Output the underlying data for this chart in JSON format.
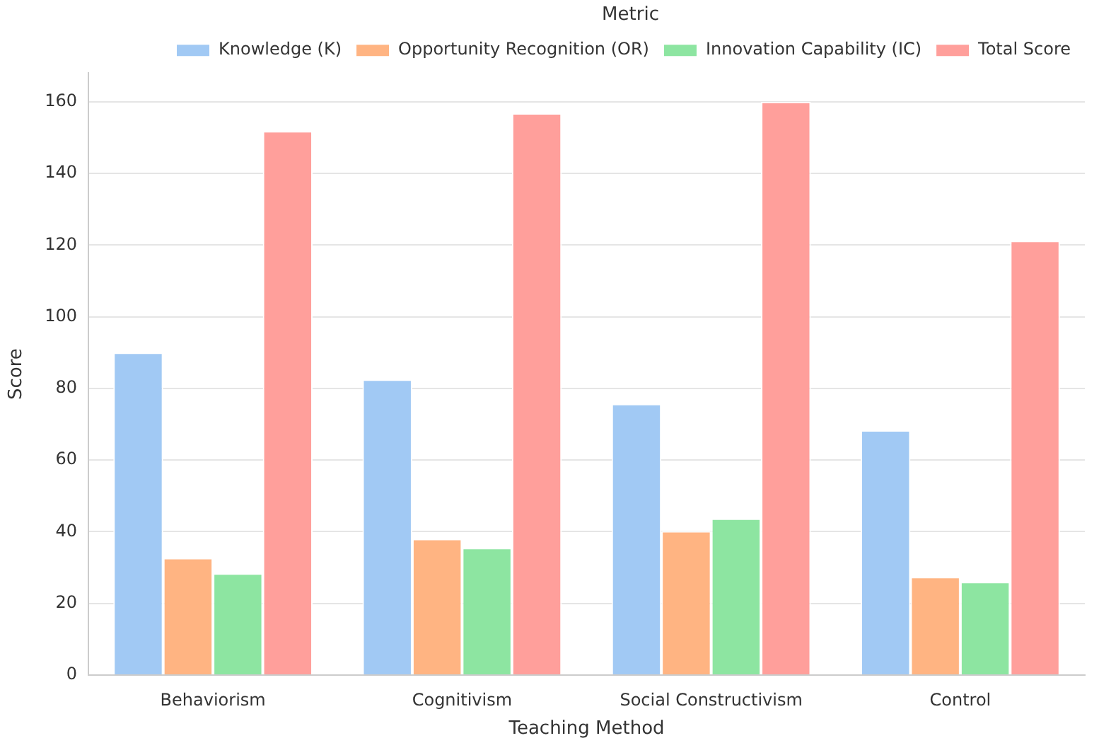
{
  "chart_data": {
    "type": "bar",
    "xlabel": "Teaching Method",
    "ylabel": "Score",
    "legend_title": "Metric",
    "legend": "top right",
    "grid": "y",
    "categories": [
      "Behaviorism",
      "Cognitivism",
      "Social Constructivism",
      "Control"
    ],
    "series": [
      {
        "name": "Knowledge (K)",
        "color": "#a1c9f4",
        "values": [
          90,
          82.5,
          75.7,
          68.3
        ]
      },
      {
        "name": "Opportunity Recognition (OR)",
        "color": "#ffb482",
        "values": [
          32.7,
          38,
          40.2,
          27.4
        ]
      },
      {
        "name": "Innovation Capability (IC)",
        "color": "#8de5a1",
        "values": [
          28.4,
          35.5,
          43.7,
          26
        ]
      },
      {
        "name": "Total Score",
        "color": "#ff9f9b",
        "values": [
          151.8,
          156.8,
          160,
          121.2
        ]
      }
    ],
    "ylim": [
      0,
      168
    ],
    "yticks": [
      0,
      20,
      40,
      60,
      80,
      100,
      120,
      140,
      160
    ]
  }
}
